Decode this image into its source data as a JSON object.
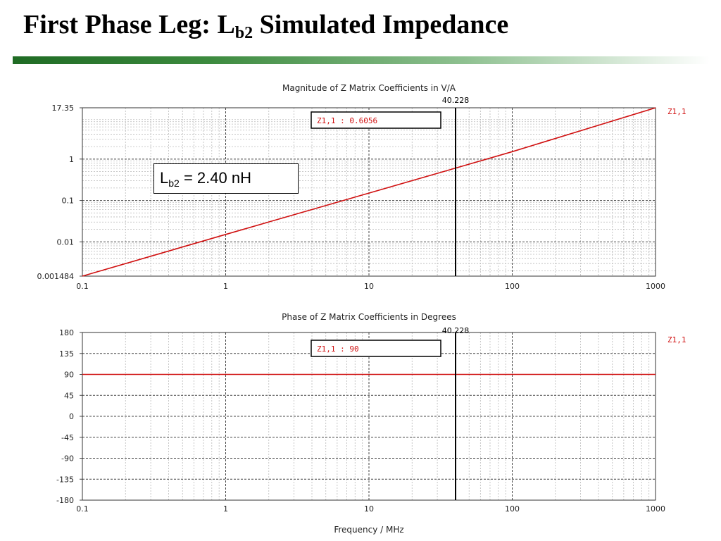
{
  "slide": {
    "title_main": "First Phase Leg: L",
    "title_sub": "b2",
    "title_rest": " Simulated Impedance"
  },
  "annotation": {
    "symbol": "L",
    "sub": "b2",
    "value_text": " = 2.40 nH"
  },
  "colors": {
    "trace": "#d01010",
    "accent_bar": "#3c8a3e"
  },
  "chart_data": [
    {
      "type": "line",
      "title": "Magnitude of Z Matrix Coefficients in V/A",
      "x_scale": "log",
      "y_scale": "log",
      "xlim": [
        0.1,
        1000
      ],
      "ylim": [
        0.001484,
        17.35
      ],
      "x_ticks": [
        {
          "v": 0.1,
          "label": "0.1"
        },
        {
          "v": 1,
          "label": "1"
        },
        {
          "v": 10,
          "label": "10"
        },
        {
          "v": 100,
          "label": "100"
        },
        {
          "v": 1000,
          "label": "1000"
        }
      ],
      "y_ticks": [
        {
          "v": 0.001484,
          "label": "0.001484"
        },
        {
          "v": 0.01,
          "label": "0.01"
        },
        {
          "v": 0.1,
          "label": "0.1"
        },
        {
          "v": 1,
          "label": "1"
        },
        {
          "v": 17.35,
          "label": "17.35"
        }
      ],
      "series": [
        {
          "name": "Z1,1",
          "x": [
            0.1,
            1,
            10,
            40.228,
            100,
            1000
          ],
          "y": [
            0.001484,
            0.01508,
            0.1508,
            0.6056,
            1.508,
            17.35
          ]
        }
      ],
      "marker": {
        "x": 40.228,
        "label": "40.228",
        "readout": "Z1,1 : 0.6056"
      },
      "legend": "right",
      "grid": true
    },
    {
      "type": "line",
      "title": "Phase of Z Matrix Coefficients in Degrees",
      "x_scale": "log",
      "y_scale": "linear",
      "xlim": [
        0.1,
        1000
      ],
      "ylim": [
        -180,
        180
      ],
      "x_ticks": [
        {
          "v": 0.1,
          "label": "0.1"
        },
        {
          "v": 1,
          "label": "1"
        },
        {
          "v": 10,
          "label": "10"
        },
        {
          "v": 100,
          "label": "100"
        },
        {
          "v": 1000,
          "label": "1000"
        }
      ],
      "y_ticks": [
        {
          "v": 180,
          "label": "180"
        },
        {
          "v": 135,
          "label": "135"
        },
        {
          "v": 90,
          "label": "90"
        },
        {
          "v": 45,
          "label": "45"
        },
        {
          "v": 0,
          "label": "0"
        },
        {
          "v": -45,
          "label": "-45"
        },
        {
          "v": -90,
          "label": "-90"
        },
        {
          "v": -135,
          "label": "-135"
        },
        {
          "v": -180,
          "label": "-180"
        }
      ],
      "series": [
        {
          "name": "Z1,1",
          "x": [
            0.1,
            1,
            10,
            40.228,
            100,
            1000
          ],
          "y": [
            90,
            90,
            90,
            90,
            90,
            90
          ]
        }
      ],
      "marker": {
        "x": 40.228,
        "label": "40.228",
        "readout": "Z1,1 : 90"
      },
      "xlabel": "Frequency / MHz",
      "legend": "right",
      "grid": true
    }
  ]
}
